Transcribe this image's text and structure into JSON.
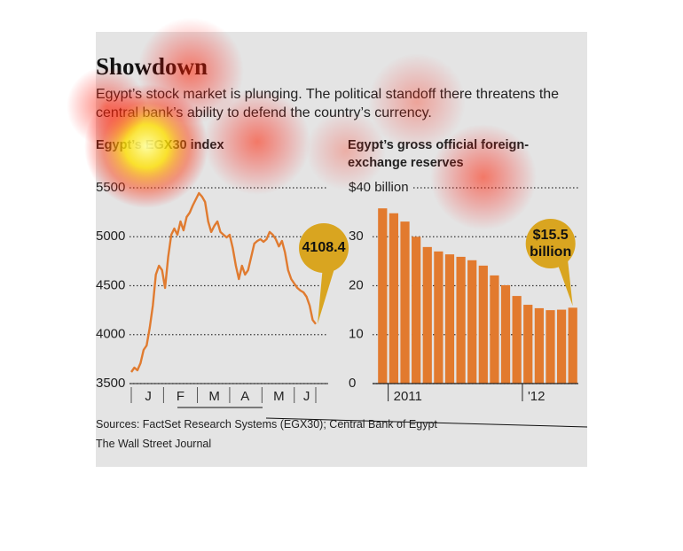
{
  "header": {
    "title": "Showdown",
    "subtitle": "Egypt’s stock market is plunging. The political standoff there threatens the central bank’s ability to defend the country’s currency."
  },
  "chart_data": [
    {
      "type": "line",
      "title": "Egypt’s EGX30 index",
      "color": "#e07b30",
      "values": [
        3618,
        3663,
        3636,
        3708,
        3844,
        3889,
        4070,
        4296,
        4613,
        4704,
        4659,
        4477,
        4794,
        5020,
        5084,
        5020,
        5156,
        5066,
        5201,
        5247,
        5319,
        5382,
        5446,
        5410,
        5355,
        5156,
        5048,
        5111,
        5156,
        5048,
        5020,
        4993,
        5020,
        4885,
        4704,
        4568,
        4704,
        4613,
        4659,
        4794,
        4930,
        4957,
        4975,
        4948,
        4975,
        5048,
        5020,
        4975,
        4902,
        4957,
        4839,
        4658,
        4568,
        4523,
        4477,
        4450,
        4432,
        4387,
        4296,
        4150,
        4108.4
      ],
      "xlim": [
        0,
        60
      ],
      "xticks": [
        {
          "value": 5.5,
          "label": "J"
        },
        {
          "value": 16,
          "label": "F"
        },
        {
          "value": 27,
          "label": "M"
        },
        {
          "value": 37,
          "label": "A"
        },
        {
          "value": 48,
          "label": "M"
        },
        {
          "value": 57,
          "label": "J"
        }
      ],
      "ylim": [
        3500,
        5500
      ],
      "yticks": [
        3500,
        4000,
        4500,
        5000,
        5500
      ],
      "grid": true
    },
    {
      "type": "bar",
      "title": "Egypt’s gross official foreign-exchange reserves",
      "color": "#e27a2e",
      "categories": [
        null,
        "2011",
        null,
        null,
        null,
        null,
        null,
        null,
        null,
        null,
        null,
        null,
        null,
        "'12",
        null,
        null,
        null,
        null
      ],
      "values": [
        35.8,
        34.8,
        33.1,
        30.0,
        27.9,
        27.0,
        26.4,
        25.9,
        25.2,
        24.1,
        22.1,
        20.1,
        17.9,
        16.1,
        15.4,
        15.0,
        15.1,
        15.5
      ],
      "value_labels": [
        null,
        null,
        null,
        null,
        null,
        null,
        null,
        null,
        null,
        null,
        null,
        null,
        null,
        null,
        null,
        null,
        null,
        "$15.5 billion"
      ],
      "ylim": [
        0,
        40
      ],
      "yticks": [
        0,
        10,
        20,
        30,
        {
          "value": 40,
          "label": "$40 billion"
        }
      ],
      "grid": true
    }
  ],
  "footer": {
    "sources": "Sources: FactSet Research Systems (EGX30); Central Bank of Egypt",
    "credit": "The Wall Street Journal"
  }
}
